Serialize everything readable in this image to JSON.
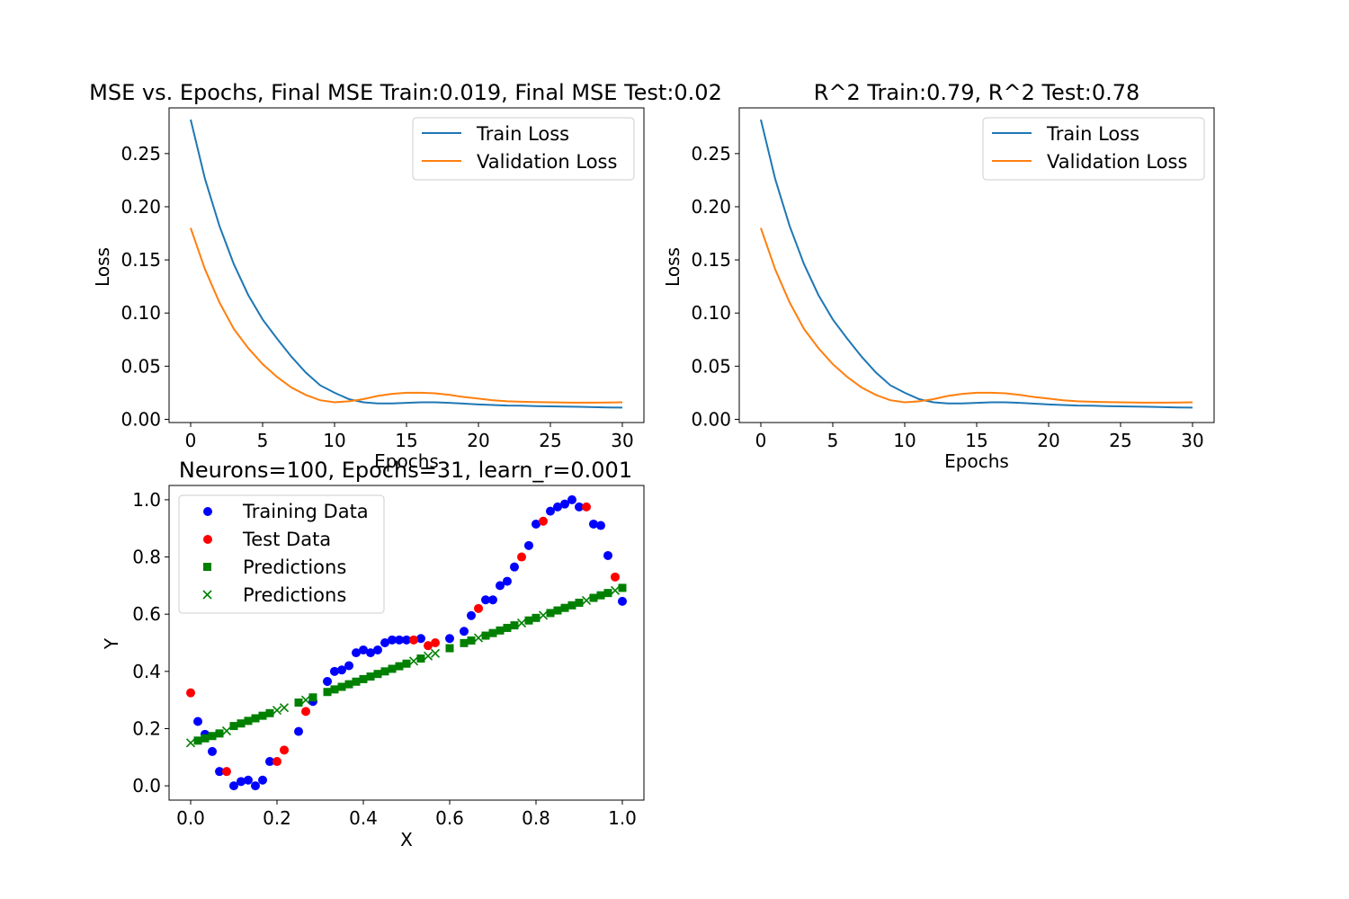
{
  "colors": {
    "train_loss": "#1f77b4",
    "val_loss": "#ff7f0e",
    "training_data": "#0000ff",
    "test_data": "#ff0000",
    "predictions": "#008000"
  },
  "chart_data": [
    {
      "type": "line",
      "title": "MSE vs. Epochs, Final MSE Train:0.019, Final MSE Test:0.02",
      "xlabel": "Epochs",
      "ylabel": "Loss",
      "xlim": [
        -1.5,
        31.5
      ],
      "ylim": [
        -0.003,
        0.293
      ],
      "xticks": [
        0,
        5,
        10,
        15,
        20,
        25,
        30
      ],
      "xtick_labels": [
        "0",
        "5",
        "10",
        "15",
        "20",
        "25",
        "30"
      ],
      "yticks": [
        0.0,
        0.05,
        0.1,
        0.15,
        0.2,
        0.25
      ],
      "ytick_labels": [
        "0.00",
        "0.05",
        "0.10",
        "0.15",
        "0.20",
        "0.25"
      ],
      "legend": "top-right",
      "x": [
        0,
        1,
        2,
        3,
        4,
        5,
        6,
        7,
        8,
        9,
        10,
        11,
        12,
        13,
        14,
        15,
        16,
        17,
        18,
        19,
        20,
        21,
        22,
        23,
        24,
        25,
        26,
        27,
        28,
        29,
        30
      ],
      "series": [
        {
          "name": "Train Loss",
          "color": "#1f77b4",
          "values": [
            0.282,
            0.226,
            0.182,
            0.146,
            0.117,
            0.094,
            0.076,
            0.059,
            0.044,
            0.032,
            0.025,
            0.019,
            0.016,
            0.015,
            0.015,
            0.0155,
            0.016,
            0.016,
            0.0155,
            0.0148,
            0.014,
            0.0135,
            0.013,
            0.0128,
            0.0125,
            0.0122,
            0.012,
            0.0118,
            0.0115,
            0.0112,
            0.011
          ]
        },
        {
          "name": "Validation Loss",
          "color": "#ff7f0e",
          "values": [
            0.18,
            0.141,
            0.11,
            0.085,
            0.067,
            0.052,
            0.04,
            0.03,
            0.023,
            0.018,
            0.016,
            0.017,
            0.019,
            0.022,
            0.024,
            0.025,
            0.025,
            0.0245,
            0.023,
            0.021,
            0.0195,
            0.018,
            0.017,
            0.0165,
            0.0162,
            0.016,
            0.0158,
            0.0157,
            0.0157,
            0.0158,
            0.016
          ]
        }
      ]
    },
    {
      "type": "line",
      "title": "R^2 Train:0.79, R^2 Test:0.78",
      "xlabel": "Epochs",
      "ylabel": "Loss",
      "xlim": [
        -1.5,
        31.5
      ],
      "ylim": [
        -0.003,
        0.293
      ],
      "xticks": [
        0,
        5,
        10,
        15,
        20,
        25,
        30
      ],
      "xtick_labels": [
        "0",
        "5",
        "10",
        "15",
        "20",
        "25",
        "30"
      ],
      "yticks": [
        0.0,
        0.05,
        0.1,
        0.15,
        0.2,
        0.25
      ],
      "ytick_labels": [
        "0.00",
        "0.05",
        "0.10",
        "0.15",
        "0.20",
        "0.25"
      ],
      "legend": "top-right",
      "x": [
        0,
        1,
        2,
        3,
        4,
        5,
        6,
        7,
        8,
        9,
        10,
        11,
        12,
        13,
        14,
        15,
        16,
        17,
        18,
        19,
        20,
        21,
        22,
        23,
        24,
        25,
        26,
        27,
        28,
        29,
        30
      ],
      "series": [
        {
          "name": "Train Loss",
          "color": "#1f77b4",
          "values": [
            0.282,
            0.226,
            0.182,
            0.146,
            0.117,
            0.094,
            0.076,
            0.059,
            0.044,
            0.032,
            0.025,
            0.019,
            0.016,
            0.015,
            0.015,
            0.0155,
            0.016,
            0.016,
            0.0155,
            0.0148,
            0.014,
            0.0135,
            0.013,
            0.0128,
            0.0125,
            0.0122,
            0.012,
            0.0118,
            0.0115,
            0.0112,
            0.011
          ]
        },
        {
          "name": "Validation Loss",
          "color": "#ff7f0e",
          "values": [
            0.18,
            0.141,
            0.11,
            0.085,
            0.067,
            0.052,
            0.04,
            0.03,
            0.023,
            0.018,
            0.016,
            0.017,
            0.019,
            0.022,
            0.024,
            0.025,
            0.025,
            0.0245,
            0.023,
            0.021,
            0.0195,
            0.018,
            0.017,
            0.0165,
            0.0162,
            0.016,
            0.0158,
            0.0157,
            0.0157,
            0.0158,
            0.016
          ]
        }
      ]
    },
    {
      "type": "scatter",
      "title": "Neurons=100, Epochs=31, learn_r=0.001",
      "xlabel": "X",
      "ylabel": "Y",
      "xlim": [
        -0.05,
        1.05
      ],
      "ylim": [
        -0.05,
        1.05
      ],
      "xticks": [
        0.0,
        0.2,
        0.4,
        0.6,
        0.8,
        1.0
      ],
      "xtick_labels": [
        "0.0",
        "0.2",
        "0.4",
        "0.6",
        "0.8",
        "1.0"
      ],
      "yticks": [
        0.0,
        0.2,
        0.4,
        0.6,
        0.8,
        1.0
      ],
      "ytick_labels": [
        "0.0",
        "0.2",
        "0.4",
        "0.6",
        "0.8",
        "1.0"
      ],
      "legend": "top-left",
      "series": [
        {
          "name": "Training Data",
          "marker": "circle",
          "color": "#0000ff",
          "x": [
            0.0167,
            0.0333,
            0.05,
            0.0667,
            0.1,
            0.1167,
            0.1333,
            0.15,
            0.1667,
            0.1833,
            0.25,
            0.2833,
            0.3167,
            0.3333,
            0.35,
            0.3667,
            0.3833,
            0.4,
            0.4167,
            0.4333,
            0.45,
            0.4667,
            0.4833,
            0.5,
            0.5333,
            0.6,
            0.6333,
            0.65,
            0.6833,
            0.7,
            0.7167,
            0.7333,
            0.75,
            0.7833,
            0.8,
            0.8333,
            0.85,
            0.8667,
            0.8833,
            0.9,
            0.9333,
            0.95,
            0.9667,
            1.0
          ],
          "y": [
            0.225,
            0.18,
            0.12,
            0.05,
            0.0,
            0.015,
            0.02,
            0.0,
            0.02,
            0.085,
            0.19,
            0.295,
            0.365,
            0.4,
            0.405,
            0.42,
            0.465,
            0.475,
            0.465,
            0.475,
            0.5,
            0.51,
            0.51,
            0.51,
            0.515,
            0.515,
            0.54,
            0.595,
            0.65,
            0.65,
            0.7,
            0.715,
            0.765,
            0.84,
            0.915,
            0.96,
            0.975,
            0.985,
            1.0,
            0.975,
            0.915,
            0.91,
            0.805,
            0.645
          ]
        },
        {
          "name": "Test Data",
          "marker": "circle",
          "color": "#ff0000",
          "x": [
            0.0,
            0.0833,
            0.2,
            0.2167,
            0.2667,
            0.5167,
            0.55,
            0.5667,
            0.6667,
            0.7667,
            0.8167,
            0.9167,
            0.9833
          ],
          "y": [
            0.325,
            0.05,
            0.085,
            0.125,
            0.26,
            0.51,
            0.49,
            0.5,
            0.62,
            0.8,
            0.925,
            0.975,
            0.73
          ]
        },
        {
          "name": "Predictions",
          "marker": "square",
          "color": "#008000",
          "x": [
            0.0167,
            0.0333,
            0.05,
            0.0667,
            0.1,
            0.1167,
            0.1333,
            0.15,
            0.1667,
            0.1833,
            0.25,
            0.2833,
            0.3167,
            0.3333,
            0.35,
            0.3667,
            0.3833,
            0.4,
            0.4167,
            0.4333,
            0.45,
            0.4667,
            0.4833,
            0.5,
            0.5333,
            0.6,
            0.6333,
            0.65,
            0.6833,
            0.7,
            0.7167,
            0.7333,
            0.75,
            0.7833,
            0.8,
            0.8333,
            0.85,
            0.8667,
            0.8833,
            0.9,
            0.9333,
            0.95,
            0.9667,
            1.0
          ],
          "y": [
            0.158,
            0.166,
            0.174,
            0.183,
            0.209,
            0.218,
            0.227,
            0.236,
            0.245,
            0.254,
            0.291,
            0.309,
            0.328,
            0.337,
            0.346,
            0.355,
            0.364,
            0.373,
            0.382,
            0.391,
            0.4,
            0.409,
            0.418,
            0.427,
            0.445,
            0.481,
            0.499,
            0.508,
            0.525,
            0.534,
            0.543,
            0.552,
            0.561,
            0.578,
            0.587,
            0.604,
            0.613,
            0.622,
            0.631,
            0.64,
            0.657,
            0.666,
            0.674,
            0.692
          ]
        },
        {
          "name": "Predictions",
          "marker": "x",
          "color": "#008000",
          "x": [
            0.0,
            0.0833,
            0.2,
            0.2167,
            0.2667,
            0.5167,
            0.55,
            0.5667,
            0.6667,
            0.7667,
            0.8167,
            0.9167,
            0.9833
          ],
          "y": [
            0.15,
            0.192,
            0.264,
            0.273,
            0.3,
            0.436,
            0.454,
            0.463,
            0.517,
            0.569,
            0.596,
            0.648,
            0.683
          ]
        }
      ]
    }
  ]
}
